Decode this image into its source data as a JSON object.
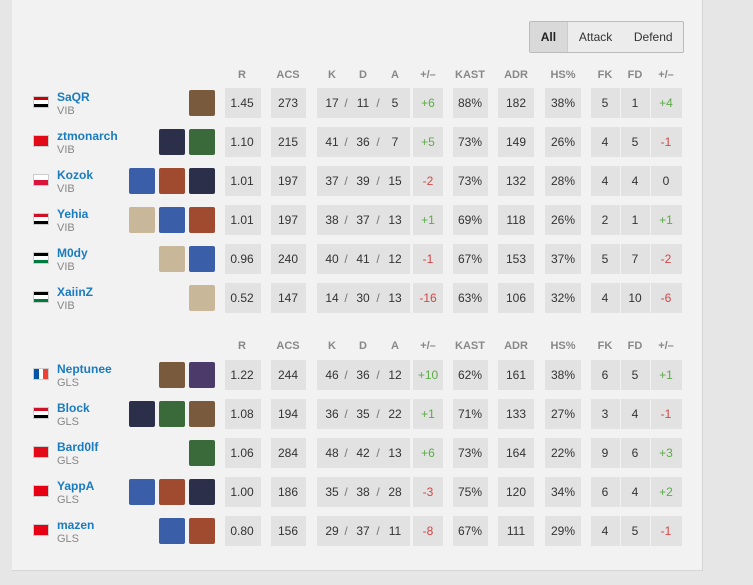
{
  "filters": [
    "All",
    "Attack",
    "Defend"
  ],
  "separator": "/",
  "tables": [
    {
      "header": [
        "R",
        "ACS",
        "K",
        "D",
        "A",
        "+/–",
        "KAST",
        "ADR",
        "HS%",
        "FK",
        "FD",
        "+/–"
      ],
      "rows": [
        {
          "name": "SaQR",
          "team": "VIB",
          "stats": [
            "1.45",
            "273",
            "17",
            "11",
            "5",
            "+6",
            "88%",
            "182",
            "38%",
            "5",
            "1",
            "+4"
          ]
        },
        {
          "name": "ztmonarch",
          "team": "VIB",
          "stats": [
            "1.10",
            "215",
            "41",
            "36",
            "7",
            "+5",
            "73%",
            "149",
            "26%",
            "4",
            "5",
            "-1"
          ]
        },
        {
          "name": "Kozok",
          "team": "VIB",
          "stats": [
            "1.01",
            "197",
            "37",
            "39",
            "15",
            "-2",
            "73%",
            "132",
            "28%",
            "4",
            "4",
            "0"
          ]
        },
        {
          "name": "Yehia",
          "team": "VIB",
          "stats": [
            "1.01",
            "197",
            "38",
            "37",
            "13",
            "+1",
            "69%",
            "118",
            "26%",
            "2",
            "1",
            "+1"
          ]
        },
        {
          "name": "M0dy",
          "team": "VIB",
          "stats": [
            "0.96",
            "240",
            "40",
            "41",
            "12",
            "-1",
            "67%",
            "153",
            "37%",
            "5",
            "7",
            "-2"
          ]
        },
        {
          "name": "XaiinZ",
          "team": "VIB",
          "stats": [
            "0.52",
            "147",
            "14",
            "30",
            "13",
            "-16",
            "63%",
            "106",
            "32%",
            "4",
            "10",
            "-6"
          ]
        }
      ]
    },
    {
      "header": [
        "R",
        "ACS",
        "K",
        "D",
        "A",
        "+/–",
        "KAST",
        "ADR",
        "HS%",
        "FK",
        "FD",
        "+/–"
      ],
      "rows": [
        {
          "name": "Neptunee",
          "team": "GLS",
          "stats": [
            "1.22",
            "244",
            "46",
            "36",
            "12",
            "+10",
            "62%",
            "161",
            "38%",
            "6",
            "5",
            "+1"
          ]
        },
        {
          "name": "Block",
          "team": "GLS",
          "stats": [
            "1.08",
            "194",
            "36",
            "35",
            "22",
            "+1",
            "71%",
            "133",
            "27%",
            "3",
            "4",
            "-1"
          ]
        },
        {
          "name": "Bard0lf",
          "team": "GLS",
          "stats": [
            "1.06",
            "284",
            "48",
            "42",
            "13",
            "+6",
            "73%",
            "164",
            "22%",
            "9",
            "6",
            "+3"
          ]
        },
        {
          "name": "YappA",
          "team": "GLS",
          "stats": [
            "1.00",
            "186",
            "35",
            "38",
            "28",
            "-3",
            "75%",
            "120",
            "34%",
            "6",
            "4",
            "+2"
          ]
        },
        {
          "name": "mazen",
          "team": "GLS",
          "stats": [
            "0.80",
            "156",
            "29",
            "37",
            "11",
            "-8",
            "67%",
            "111",
            "29%",
            "4",
            "5",
            "-1"
          ]
        }
      ]
    }
  ]
}
